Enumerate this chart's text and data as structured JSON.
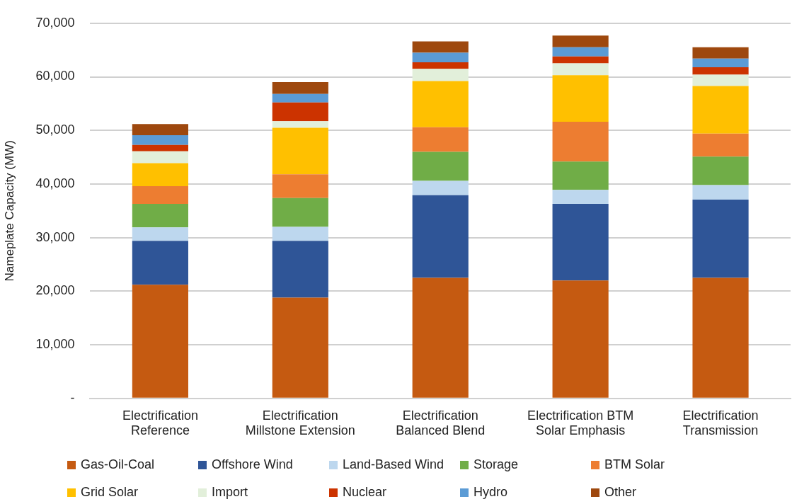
{
  "chart_data": {
    "type": "bar",
    "stacked": true,
    "ylabel": "Nameplate Capacity (MW)",
    "categories": [
      "Electrification Reference",
      "Electrification Millstone Extension",
      "Electrification Balanced Blend",
      "Electrification BTM Solar Emphasis",
      "Electrification Transmission"
    ],
    "series": [
      {
        "name": "Gas-Oil-Coal",
        "color": "#c55a11",
        "values": [
          21200,
          18800,
          22500,
          22000,
          22500
        ]
      },
      {
        "name": "Offshore Wind",
        "color": "#2f5597",
        "values": [
          8200,
          10600,
          15400,
          14300,
          14600
        ]
      },
      {
        "name": "Land-Based Wind",
        "color": "#bdd7ee",
        "values": [
          2500,
          2600,
          2700,
          2600,
          2700
        ]
      },
      {
        "name": "Storage",
        "color": "#70ad47",
        "values": [
          4400,
          5400,
          5400,
          5300,
          5300
        ]
      },
      {
        "name": "BTM Solar",
        "color": "#ed7d31",
        "values": [
          3300,
          4400,
          4600,
          7400,
          4300
        ]
      },
      {
        "name": "Grid Solar",
        "color": "#ffc000",
        "values": [
          4300,
          8700,
          8600,
          8700,
          8900
        ]
      },
      {
        "name": "Import",
        "color": "#e2efda",
        "values": [
          2200,
          1200,
          2300,
          2200,
          2100
        ]
      },
      {
        "name": "Nuclear",
        "color": "#cc3300",
        "values": [
          1200,
          3500,
          1200,
          1300,
          1400
        ]
      },
      {
        "name": "Hydro",
        "color": "#5b9bd5",
        "values": [
          1800,
          1600,
          1800,
          1700,
          1600
        ]
      },
      {
        "name": "Other",
        "color": "#9e480e",
        "values": [
          2100,
          2200,
          2100,
          2200,
          2100
        ]
      }
    ],
    "ylim": [
      0,
      70000
    ],
    "yticks": [
      {
        "value": 0,
        "label": "-"
      },
      {
        "value": 10000,
        "label": "10,000"
      },
      {
        "value": 20000,
        "label": "20,000"
      },
      {
        "value": 30000,
        "label": "30,000"
      },
      {
        "value": 40000,
        "label": "40,000"
      },
      {
        "value": 50000,
        "label": "50,000"
      },
      {
        "value": 60000,
        "label": "60,000"
      },
      {
        "value": 70000,
        "label": "70,000"
      }
    ],
    "grid": "y",
    "legend": "bottom"
  }
}
